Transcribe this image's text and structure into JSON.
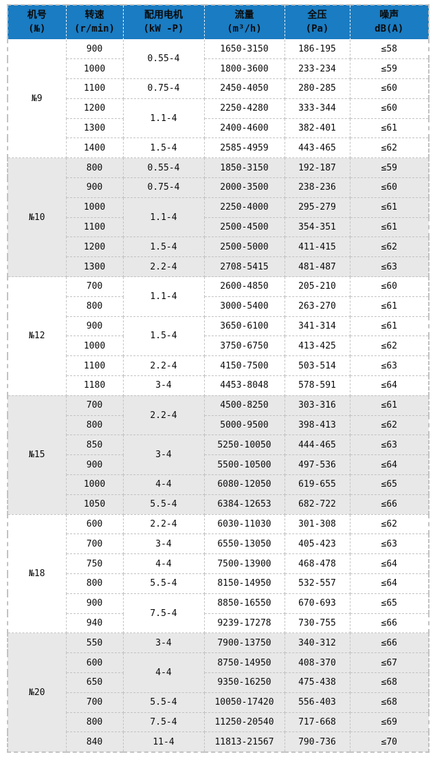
{
  "colors": {
    "header_bg": "#1a7cc2",
    "row_alt_bg": "#e8e8e8",
    "grid": "#c2c2c2"
  },
  "table": {
    "headers": [
      {
        "line1": "机号",
        "line2": "(№)"
      },
      {
        "line1": "转速",
        "line2": "(r/min)"
      },
      {
        "line1": "配用电机",
        "line2": "(kW -P)"
      },
      {
        "line1": "流量",
        "line2": "(m³/h)"
      },
      {
        "line1": "全压",
        "line2": "(Pa)"
      },
      {
        "line1": "噪声",
        "line2": "dB(A)"
      }
    ],
    "groups": [
      {
        "model": "№9",
        "rows": [
          {
            "speed": "900",
            "motor": "0.55-4",
            "motor_span": 2,
            "flow": "1650-3150",
            "pressure": "186-195",
            "noise": "≤58"
          },
          {
            "speed": "1000",
            "flow": "1800-3600",
            "pressure": "233-234",
            "noise": "≤59"
          },
          {
            "speed": "1100",
            "motor": "0.75-4",
            "motor_span": 1,
            "flow": "2450-4050",
            "pressure": "280-285",
            "noise": "≤60"
          },
          {
            "speed": "1200",
            "motor": "1.1-4",
            "motor_span": 2,
            "flow": "2250-4280",
            "pressure": "333-344",
            "noise": "≤60"
          },
          {
            "speed": "1300",
            "flow": "2400-4600",
            "pressure": "382-401",
            "noise": "≤61"
          },
          {
            "speed": "1400",
            "motor": "1.5-4",
            "motor_span": 1,
            "flow": "2585-4959",
            "pressure": "443-465",
            "noise": "≤62"
          }
        ]
      },
      {
        "model": "№10",
        "rows": [
          {
            "speed": "800",
            "motor": "0.55-4",
            "motor_span": 1,
            "flow": "1850-3150",
            "pressure": "192-187",
            "noise": "≤59"
          },
          {
            "speed": "900",
            "motor": "0.75-4",
            "motor_span": 1,
            "flow": "2000-3500",
            "pressure": "238-236",
            "noise": "≤60"
          },
          {
            "speed": "1000",
            "motor": "1.1-4",
            "motor_span": 2,
            "flow": "2250-4000",
            "pressure": "295-279",
            "noise": "≤61"
          },
          {
            "speed": "1100",
            "flow": "2500-4500",
            "pressure": "354-351",
            "noise": "≤61"
          },
          {
            "speed": "1200",
            "motor": "1.5-4",
            "motor_span": 1,
            "flow": "2500-5000",
            "pressure": "411-415",
            "noise": "≤62"
          },
          {
            "speed": "1300",
            "motor": "2.2-4",
            "motor_span": 1,
            "flow": "2708-5415",
            "pressure": "481-487",
            "noise": "≤63"
          }
        ]
      },
      {
        "model": "№12",
        "rows": [
          {
            "speed": "700",
            "motor": "1.1-4",
            "motor_span": 2,
            "flow": "2600-4850",
            "pressure": "205-210",
            "noise": "≤60"
          },
          {
            "speed": "800",
            "flow": "3000-5400",
            "pressure": "263-270",
            "noise": "≤61"
          },
          {
            "speed": "900",
            "motor": "1.5-4",
            "motor_span": 2,
            "flow": "3650-6100",
            "pressure": "341-314",
            "noise": "≤61"
          },
          {
            "speed": "1000",
            "flow": "3750-6750",
            "pressure": "413-425",
            "noise": "≤62"
          },
          {
            "speed": "1100",
            "motor": "2.2-4",
            "motor_span": 1,
            "flow": "4150-7500",
            "pressure": "503-514",
            "noise": "≤63"
          },
          {
            "speed": "1180",
            "motor": "3-4",
            "motor_span": 1,
            "flow": "4453-8048",
            "pressure": "578-591",
            "noise": "≤64"
          }
        ]
      },
      {
        "model": "№15",
        "rows": [
          {
            "speed": "700",
            "motor": "2.2-4",
            "motor_span": 2,
            "flow": "4500-8250",
            "pressure": "303-316",
            "noise": "≤61"
          },
          {
            "speed": "800",
            "flow": "5000-9500",
            "pressure": "398-413",
            "noise": "≤62"
          },
          {
            "speed": "850",
            "motor": "3-4",
            "motor_span": 2,
            "flow": "5250-10050",
            "pressure": "444-465",
            "noise": "≤63"
          },
          {
            "speed": "900",
            "flow": "5500-10500",
            "pressure": "497-536",
            "noise": "≤64"
          },
          {
            "speed": "1000",
            "motor": "4-4",
            "motor_span": 1,
            "flow": "6080-12050",
            "pressure": "619-655",
            "noise": "≤65"
          },
          {
            "speed": "1050",
            "motor": "5.5-4",
            "motor_span": 1,
            "flow": "6384-12653",
            "pressure": "682-722",
            "noise": "≤66"
          }
        ]
      },
      {
        "model": "№18",
        "rows": [
          {
            "speed": "600",
            "motor": "2.2-4",
            "motor_span": 1,
            "flow": "6030-11030",
            "pressure": "301-308",
            "noise": "≤62"
          },
          {
            "speed": "700",
            "motor": "3-4",
            "motor_span": 1,
            "flow": "6550-13050",
            "pressure": "405-423",
            "noise": "≤63"
          },
          {
            "speed": "750",
            "motor": "4-4",
            "motor_span": 1,
            "flow": "7500-13900",
            "pressure": "468-478",
            "noise": "≤64"
          },
          {
            "speed": "800",
            "motor": "5.5-4",
            "motor_span": 1,
            "flow": "8150-14950",
            "pressure": "532-557",
            "noise": "≤64"
          },
          {
            "speed": "900",
            "motor": "7.5-4",
            "motor_span": 2,
            "flow": "8850-16550",
            "pressure": "670-693",
            "noise": "≤65"
          },
          {
            "speed": "940",
            "flow": "9239-17278",
            "pressure": "730-755",
            "noise": "≤66"
          }
        ]
      },
      {
        "model": "№20",
        "rows": [
          {
            "speed": "550",
            "motor": "3-4",
            "motor_span": 1,
            "flow": "7900-13750",
            "pressure": "340-312",
            "noise": "≤66"
          },
          {
            "speed": "600",
            "motor": "4-4",
            "motor_span": 2,
            "flow": "8750-14950",
            "pressure": "408-370",
            "noise": "≤67"
          },
          {
            "speed": "650",
            "flow": "9350-16250",
            "pressure": "475-438",
            "noise": "≤68"
          },
          {
            "speed": "700",
            "motor": "5.5-4",
            "motor_span": 1,
            "flow": "10050-17420",
            "pressure": "556-403",
            "noise": "≤68"
          },
          {
            "speed": "800",
            "motor": "7.5-4",
            "motor_span": 1,
            "flow": "11250-20540",
            "pressure": "717-668",
            "noise": "≤69"
          },
          {
            "speed": "840",
            "motor": "11-4",
            "motor_span": 1,
            "flow": "11813-21567",
            "pressure": "790-736",
            "noise": "≤70"
          }
        ]
      }
    ]
  }
}
